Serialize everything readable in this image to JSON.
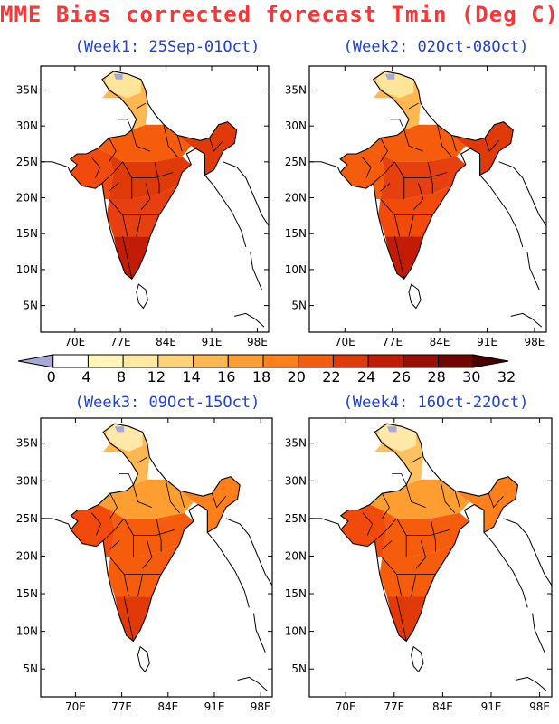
{
  "title": "MME Bias corrected forecast Tmin (Deg C)",
  "colors": {
    "title": "#ff3333",
    "panel_title": "#1f3fd9"
  },
  "legend": {
    "labels": [
      "0",
      "4",
      "8",
      "12",
      "14",
      "16",
      "18",
      "20",
      "22",
      "24",
      "26",
      "28",
      "30",
      "32"
    ],
    "colors": [
      "#a8a8d8",
      "#ffffff",
      "#fff6b8",
      "#ffe8a0",
      "#ffd27a",
      "#ffb851",
      "#ff9e30",
      "#ff7f1a",
      "#f55c0c",
      "#e03a08",
      "#c21c06",
      "#9a0e04",
      "#700600",
      "#4a0000"
    ]
  },
  "panels": [
    {
      "title": "(Week1: 25Sep-01Oct)",
      "lat_ticks": [
        "35N",
        "30N",
        "25N",
        "20N",
        "15N",
        "10N",
        "5N"
      ],
      "lon_ticks": [
        "70E",
        "77E",
        "84E",
        "91E",
        "98E"
      ],
      "regions": {
        "north": "#ffe59a",
        "northmid": "#ffb851",
        "upper": "#f55c0c",
        "central": "#e03a08",
        "peninsula": "#e64010",
        "east": "#e03a08",
        "west": "#f24a0a",
        "south": "#c21c06"
      }
    },
    {
      "title": "(Week2: 02Oct-08Oct)",
      "lat_ticks": [
        "35N",
        "30N",
        "25N",
        "20N",
        "15N",
        "10N",
        "5N"
      ],
      "lon_ticks": [
        "70E",
        "77E",
        "84E",
        "91E",
        "98E"
      ],
      "regions": {
        "north": "#ffe59a",
        "northmid": "#ffb851",
        "upper": "#f55c0c",
        "central": "#e64010",
        "peninsula": "#f24a0a",
        "east": "#e03a08",
        "west": "#f55c0c",
        "south": "#c21c06"
      }
    },
    {
      "title": "(Week3: 09Oct-15Oct)",
      "lat_ticks": [
        "35N",
        "30N",
        "25N",
        "20N",
        "15N",
        "10N",
        "5N"
      ],
      "lon_ticks": [
        "70E",
        "77E",
        "84E",
        "91E",
        "98E"
      ],
      "regions": {
        "north": "#ffe8a8",
        "northmid": "#ffb851",
        "upper": "#ff9e30",
        "central": "#f55c0c",
        "peninsula": "#f55c0c",
        "east": "#ff7f1a",
        "west": "#f24a0a",
        "south": "#e03a08"
      }
    },
    {
      "title": "(Week4: 16Oct-22Oct)",
      "lat_ticks": [
        "35N",
        "30N",
        "25N",
        "20N",
        "15N",
        "10N",
        "5N"
      ],
      "lon_ticks": [
        "70E",
        "77E",
        "84E",
        "91E",
        "98E"
      ],
      "regions": {
        "north": "#ffe8a8",
        "northmid": "#ffc060",
        "upper": "#ff9e30",
        "central": "#f55c0c",
        "peninsula": "#f55c0c",
        "east": "#ff7f1a",
        "west": "#f24a0a",
        "south": "#e03a08"
      }
    }
  ]
}
